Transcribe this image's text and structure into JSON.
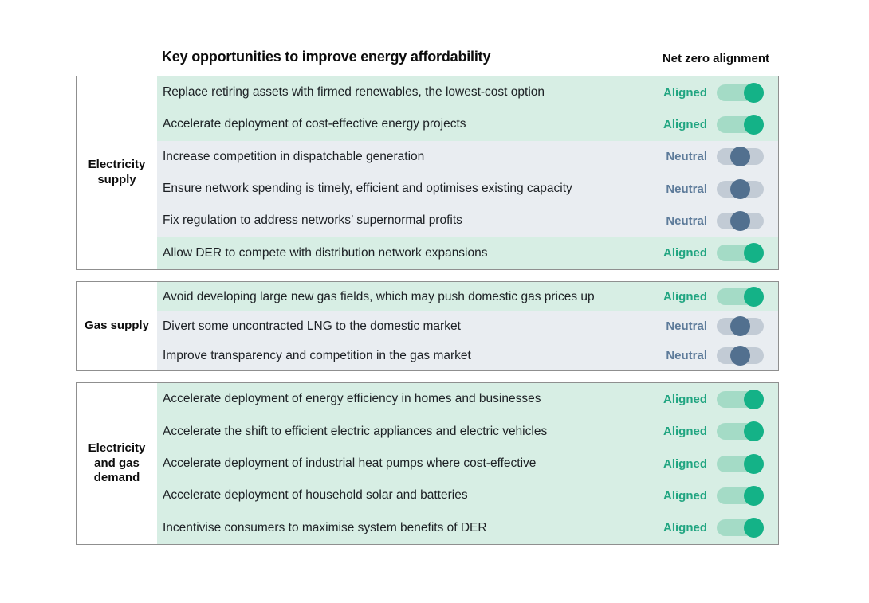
{
  "header": {
    "title": "Key opportunities to improve energy affordability",
    "right_title": "Net zero alignment"
  },
  "colors": {
    "box_border": "#8f8f8f",
    "aligned_row_bg": "#d7eee4",
    "aligned_text": "#21a581",
    "aligned_track": "#a4dbc6",
    "aligned_knob": "#14b287",
    "neutral_row_bg": "#e9edf1",
    "neutral_text": "#5d7b9a",
    "neutral_track": "#c2cbd5",
    "neutral_knob": "#52708f"
  },
  "statuses": {
    "Aligned": {
      "label": "Aligned",
      "toggle_position": "right"
    },
    "Neutral": {
      "label": "Neutral",
      "toggle_position": "center"
    }
  },
  "sections": [
    {
      "label": "Electricity supply",
      "rows": [
        {
          "text": "Replace retiring assets with firmed renewables, the lowest-cost option",
          "status": "Aligned"
        },
        {
          "text": "Accelerate deployment of cost-effective energy projects",
          "status": "Aligned"
        },
        {
          "text": "Increase competition in dispatchable generation",
          "status": "Neutral"
        },
        {
          "text": "Ensure network spending is timely, efficient and optimises existing capacity",
          "status": "Neutral"
        },
        {
          "text": "Fix regulation to address networks’ supernormal profits",
          "status": "Neutral"
        },
        {
          "text": "Allow DER to compete with distribution network expansions",
          "status": "Aligned"
        }
      ]
    },
    {
      "label": "Gas supply",
      "rows": [
        {
          "text": "Avoid developing large new gas fields, which may push domestic gas prices up",
          "status": "Aligned"
        },
        {
          "text": "Divert some uncontracted LNG to the domestic market",
          "status": "Neutral"
        },
        {
          "text": "Improve transparency and competition in the gas market",
          "status": "Neutral"
        }
      ]
    },
    {
      "label": "Electricity and gas demand",
      "rows": [
        {
          "text": "Accelerate deployment of energy efficiency in homes and businesses",
          "status": "Aligned"
        },
        {
          "text": "Accelerate the shift to efficient electric appliances and electric vehicles",
          "status": "Aligned"
        },
        {
          "text": "Accelerate deployment of industrial heat pumps where cost-effective",
          "status": "Aligned"
        },
        {
          "text": "Accelerate deployment of household solar and batteries",
          "status": "Aligned"
        },
        {
          "text": "Incentivise consumers to maximise system benefits of DER",
          "status": "Aligned"
        }
      ]
    }
  ]
}
